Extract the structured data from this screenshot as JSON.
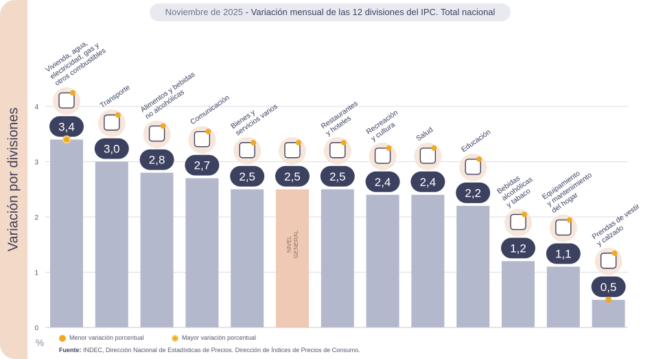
{
  "header": {
    "date": "Noviembre de 2025",
    "separator": "-",
    "title": "Variación mensual de las 12 divisiones del IPC. Total nacional"
  },
  "colors": {
    "bar": "#b4b8cc",
    "bar_general": "#efc9b3",
    "badge": "#3d4160",
    "badge_text": "#ffffff",
    "accent": "#f0a922",
    "side_panel": "#f3d9c8",
    "label_text": "#3d4160",
    "grid": "#dcdde5"
  },
  "chart_data": {
    "type": "bar",
    "ylabel": "Variación por divisiones",
    "unit_label": "%",
    "ylim": [
      0,
      4
    ],
    "yticks": [
      0,
      1,
      2,
      3,
      4
    ],
    "grid": true,
    "categories": [
      "Vivienda, agua, electricidad, gas y otros combustibles",
      "Transporte",
      "Alimentos y bebidas no alcohólicas",
      "Comunicación",
      "Bienes y servicios varios",
      "NIVEL GENERAL",
      "Restaurantes y hoteles",
      "Recreación y cultura",
      "Salud",
      "Educación",
      "Bebidas alcohólicas y tabaco",
      "Equipamiento y mantenimiento del hogar",
      "Prendas de vestir y calzado"
    ],
    "label_lines": [
      [
        "Vivienda, agua,",
        "electricidad, gas y",
        "otros combustibles"
      ],
      [
        "Transporte"
      ],
      [
        "Alimentos y bebidas",
        "no alcohólicas"
      ],
      [
        "Comunicación"
      ],
      [
        "Bienes y",
        "servicios varios"
      ],
      [],
      [
        "Restaurantes",
        "y hoteles"
      ],
      [
        "Recreación",
        "y cultura"
      ],
      [
        "Salud"
      ],
      [
        "Educación"
      ],
      [
        "Bebidas",
        "alcohólicas",
        "y tabaco"
      ],
      [
        "Equipamiento",
        "y mantenimiento",
        "del hogar"
      ],
      [
        "Prendas de vestir",
        "y calzado"
      ]
    ],
    "values": [
      3.4,
      3.0,
      2.8,
      2.7,
      2.5,
      2.5,
      2.5,
      2.4,
      2.4,
      2.2,
      1.2,
      1.1,
      0.5
    ],
    "value_labels": [
      "3,4",
      "3,0",
      "2,8",
      "2,7",
      "2,5",
      "2,5",
      "2,5",
      "2,4",
      "2,4",
      "2,2",
      "1,2",
      "1,1",
      "0,5"
    ],
    "general_level_label": [
      "NIVEL",
      "GENERAL"
    ],
    "general_index": 5,
    "max_index": 0,
    "min_index": 12,
    "icons": [
      "bulb-icon",
      "bus-icon",
      "food-icon",
      "phone-icon",
      "comb-scissors-icon",
      "basket-icon",
      "dining-icon",
      "umbrella-sun-icon",
      "first-aid-icon",
      "book-pencil-icon",
      "wine-icon",
      "air-conditioner-icon",
      "shirt-shoe-icon"
    ]
  },
  "legend": {
    "min_label": "Menor variación porcentual",
    "max_label": "Mayor variación porcentual"
  },
  "source": {
    "prefix": "Fuente:",
    "text": "INDEC, Dirección Nacional de Estadísticas de Precios. Dirección de Índices de Precios de Consumo."
  }
}
